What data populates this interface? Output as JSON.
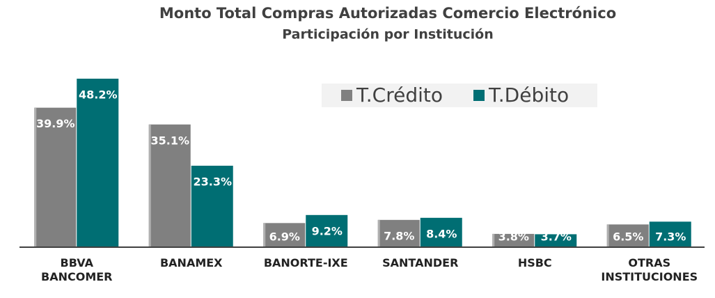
{
  "chart_data": {
    "type": "bar",
    "title": "Monto Total Compras Autorizadas Comercio Electrónico",
    "subtitle": "Participación por Institución",
    "categories": [
      "BBVA\nBANCOMER",
      "BANAMEX",
      "BANORTE-IXE",
      "SANTANDER",
      "HSBC",
      "OTRAS\nINSTITUCIONES"
    ],
    "series": [
      {
        "name": "T.Crédito",
        "color": "#808080",
        "values": [
          39.9,
          35.1,
          6.9,
          7.8,
          3.8,
          6.5
        ],
        "value_labels": [
          "39.9%",
          "35.1%",
          "6.9%",
          "7.8%",
          "3.8%",
          "6.5%"
        ]
      },
      {
        "name": "T.Débito",
        "color": "#006e73",
        "values": [
          48.2,
          23.3,
          9.2,
          8.4,
          3.7,
          7.3
        ],
        "value_labels": [
          "48.2%",
          "23.3%",
          "9.2%",
          "8.4%",
          "3.7%",
          "7.3%"
        ]
      }
    ],
    "legend": "top-right"
  }
}
